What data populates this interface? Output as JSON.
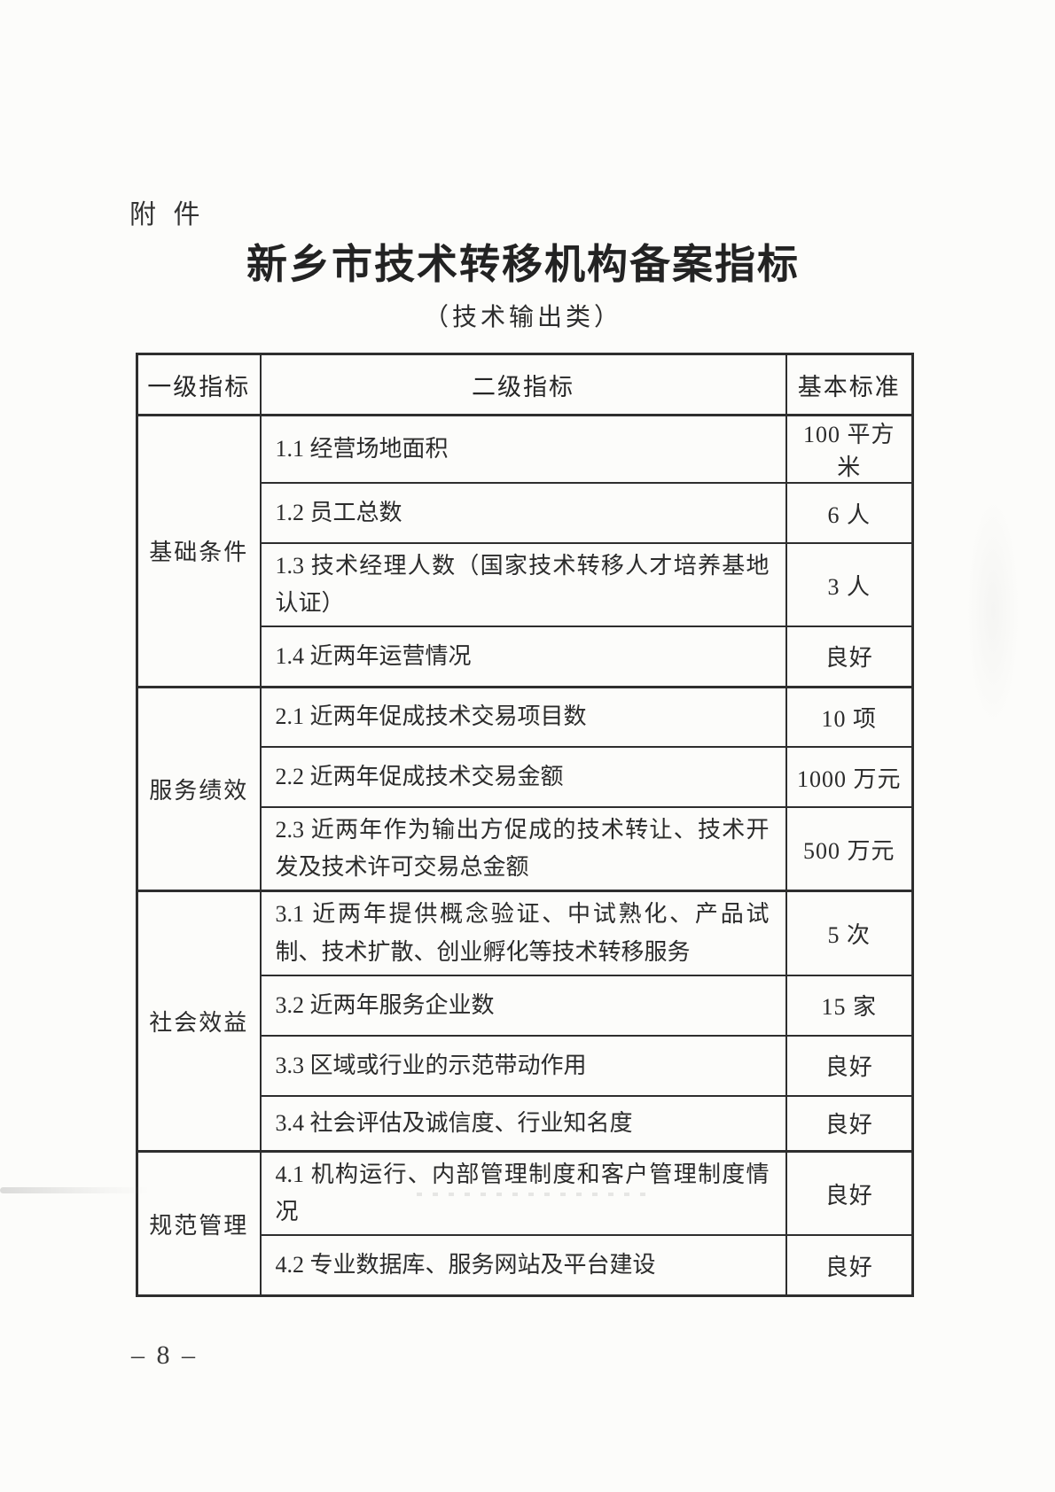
{
  "page": {
    "attachment_label": "附 件",
    "title": "新乡市技术转移机构备案指标",
    "subtitle": "（技术输出类）",
    "page_number": "– 8 –"
  },
  "table": {
    "headers": [
      "一级指标",
      "二级指标",
      "基本标准"
    ],
    "groups": [
      {
        "name": "基础条件",
        "rows": [
          {
            "indicator": "1.1 经营场地面积",
            "standard": "100 平方米"
          },
          {
            "indicator": "1.2 员工总数",
            "standard": "6 人"
          },
          {
            "indicator": "1.3 技术经理人数（国家技术转移人才培养基地认证）",
            "standard": "3 人"
          },
          {
            "indicator": "1.4 近两年运营情况",
            "standard": "良好"
          }
        ]
      },
      {
        "name": "服务绩效",
        "rows": [
          {
            "indicator": "2.1 近两年促成技术交易项目数",
            "standard": "10 项"
          },
          {
            "indicator": "2.2 近两年促成技术交易金额",
            "standard": "1000 万元"
          },
          {
            "indicator": "2.3 近两年作为输出方促成的技术转让、技术开发及技术许可交易总金额",
            "standard": "500 万元"
          }
        ]
      },
      {
        "name": "社会效益",
        "rows": [
          {
            "indicator": "3.1 近两年提供概念验证、中试熟化、产品试制、技术扩散、创业孵化等技术转移服务",
            "standard": "5 次"
          },
          {
            "indicator": "3.2 近两年服务企业数",
            "standard": "15 家"
          },
          {
            "indicator": "3.3 区域或行业的示范带动作用",
            "standard": "良好"
          },
          {
            "indicator": "3.4 社会评估及诚信度、行业知名度",
            "standard": "良好"
          }
        ]
      },
      {
        "name": "规范管理",
        "rows": [
          {
            "indicator": "4.1 机构运行、内部管理制度和客户管理制度情况",
            "standard": "良好"
          },
          {
            "indicator": "4.2 专业数据库、服务网站及平台建设",
            "standard": "良好"
          }
        ]
      }
    ]
  }
}
